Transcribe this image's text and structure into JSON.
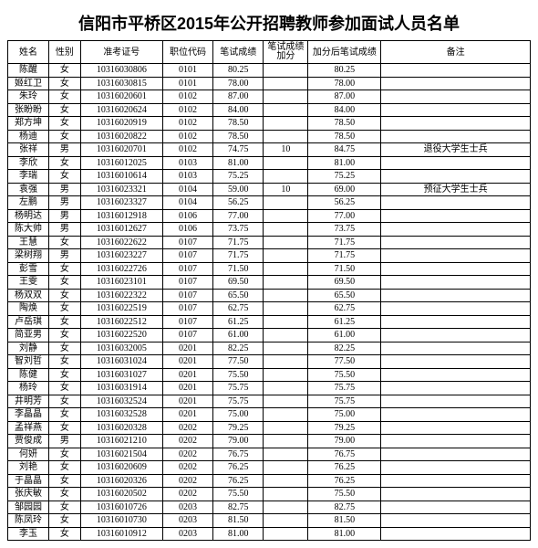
{
  "title": "信阳市平桥区2015年公开招聘教师参加面试人员名单",
  "columns": [
    "姓名",
    "性别",
    "准考证号",
    "职位代码",
    "笔试成绩",
    "笔试成绩加分",
    "加分后笔试成绩",
    "备注"
  ],
  "rows": [
    [
      "陈醒",
      "女",
      "10316030806",
      "0101",
      "80.25",
      "",
      "80.25",
      ""
    ],
    [
      "姬红卫",
      "女",
      "10316030815",
      "0101",
      "78.00",
      "",
      "78.00",
      ""
    ],
    [
      "朱玲",
      "女",
      "10316020601",
      "0102",
      "87.00",
      "",
      "87.00",
      ""
    ],
    [
      "张盼盼",
      "女",
      "10316020624",
      "0102",
      "84.00",
      "",
      "84.00",
      ""
    ],
    [
      "郑方坤",
      "女",
      "10316020919",
      "0102",
      "78.50",
      "",
      "78.50",
      ""
    ],
    [
      "杨迪",
      "女",
      "10316020822",
      "0102",
      "78.50",
      "",
      "78.50",
      ""
    ],
    [
      "张祥",
      "男",
      "10316020701",
      "0102",
      "74.75",
      "10",
      "84.75",
      "退役大学生士兵"
    ],
    [
      "李欣",
      "女",
      "10316012025",
      "0103",
      "81.00",
      "",
      "81.00",
      ""
    ],
    [
      "李瑞",
      "女",
      "10316010614",
      "0103",
      "75.25",
      "",
      "75.25",
      ""
    ],
    [
      "袁强",
      "男",
      "10316023321",
      "0104",
      "59.00",
      "10",
      "69.00",
      "预征大学生士兵"
    ],
    [
      "左鹏",
      "男",
      "10316023327",
      "0104",
      "56.25",
      "",
      "56.25",
      ""
    ],
    [
      "杨明达",
      "男",
      "10316012918",
      "0106",
      "77.00",
      "",
      "77.00",
      ""
    ],
    [
      "陈大帅",
      "男",
      "10316012627",
      "0106",
      "73.75",
      "",
      "73.75",
      ""
    ],
    [
      "王慧",
      "女",
      "10316022622",
      "0107",
      "71.75",
      "",
      "71.75",
      ""
    ],
    [
      "梁树翔",
      "男",
      "10316023227",
      "0107",
      "71.75",
      "",
      "71.75",
      ""
    ],
    [
      "彭雪",
      "女",
      "10316022726",
      "0107",
      "71.50",
      "",
      "71.50",
      ""
    ],
    [
      "王雯",
      "女",
      "10316023101",
      "0107",
      "69.50",
      "",
      "69.50",
      ""
    ],
    [
      "杨双双",
      "女",
      "10316022322",
      "0107",
      "65.50",
      "",
      "65.50",
      ""
    ],
    [
      "陶焕",
      "女",
      "10316022519",
      "0107",
      "62.75",
      "",
      "62.75",
      ""
    ],
    [
      "卢岳琪",
      "女",
      "10316022512",
      "0107",
      "61.25",
      "",
      "61.25",
      ""
    ],
    [
      "简亚男",
      "女",
      "10316022520",
      "0107",
      "61.00",
      "",
      "61.00",
      ""
    ],
    [
      "刘静",
      "女",
      "10316032005",
      "0201",
      "82.25",
      "",
      "82.25",
      ""
    ],
    [
      "智刘哲",
      "女",
      "10316031024",
      "0201",
      "77.50",
      "",
      "77.50",
      ""
    ],
    [
      "陈健",
      "女",
      "10316031027",
      "0201",
      "75.50",
      "",
      "75.50",
      ""
    ],
    [
      "杨玲",
      "女",
      "10316031914",
      "0201",
      "75.75",
      "",
      "75.75",
      ""
    ],
    [
      "井明芳",
      "女",
      "10316032524",
      "0201",
      "75.75",
      "",
      "75.75",
      ""
    ],
    [
      "李晶晶",
      "女",
      "10316032528",
      "0201",
      "75.00",
      "",
      "75.00",
      ""
    ],
    [
      "孟祥燕",
      "女",
      "10316020328",
      "0202",
      "79.25",
      "",
      "79.25",
      ""
    ],
    [
      "贾俊成",
      "男",
      "10316021210",
      "0202",
      "79.00",
      "",
      "79.00",
      ""
    ],
    [
      "何妍",
      "女",
      "10316021504",
      "0202",
      "76.75",
      "",
      "76.75",
      ""
    ],
    [
      "刘艳",
      "女",
      "10316020609",
      "0202",
      "76.25",
      "",
      "76.25",
      ""
    ],
    [
      "于晶晶",
      "女",
      "10316020326",
      "0202",
      "76.25",
      "",
      "76.25",
      ""
    ],
    [
      "张庆敏",
      "女",
      "10316020502",
      "0202",
      "75.50",
      "",
      "75.50",
      ""
    ],
    [
      "邹园园",
      "女",
      "10316010726",
      "0203",
      "82.75",
      "",
      "82.75",
      ""
    ],
    [
      "陈凤玲",
      "女",
      "10316010730",
      "0203",
      "81.50",
      "",
      "81.50",
      ""
    ],
    [
      "李玉",
      "女",
      "10316010912",
      "0203",
      "81.00",
      "",
      "81.00",
      ""
    ]
  ]
}
